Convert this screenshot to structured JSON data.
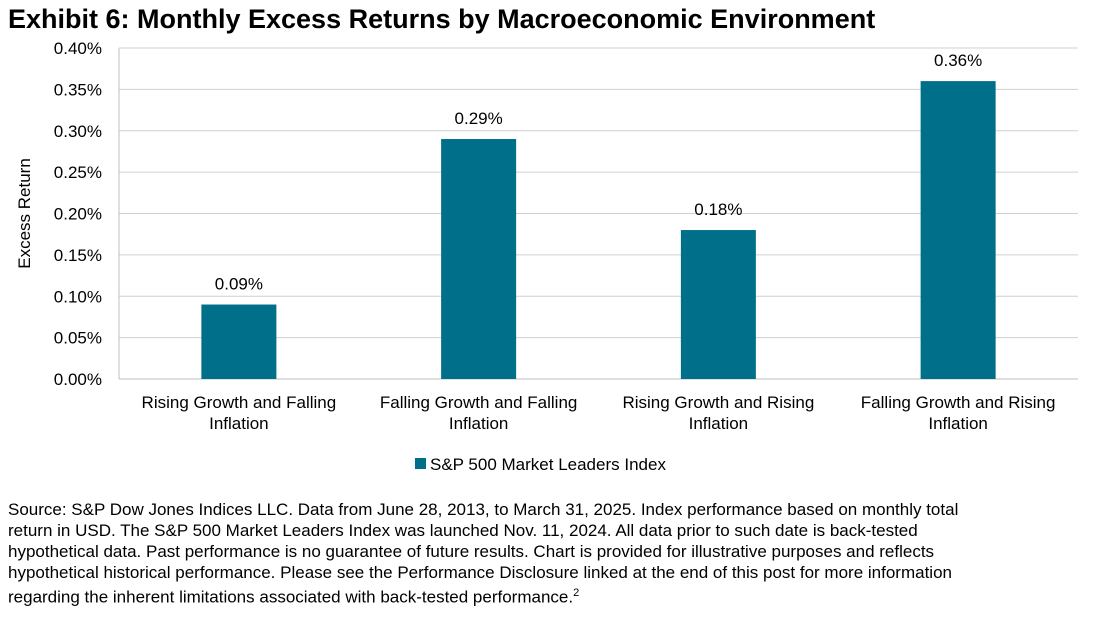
{
  "title": "Exhibit 6: Monthly Excess Returns by Macroeconomic Environment",
  "colors": {
    "bar": "#006f89",
    "grid": "#d0d0d0",
    "axis": "#bfbfbf"
  },
  "chart_data": {
    "type": "bar",
    "title": "Exhibit 6: Monthly Excess Returns by Macroeconomic Environment",
    "xlabel": "",
    "ylabel": "Excess Return",
    "ylim": [
      0,
      0.4
    ],
    "yticks": [
      "0.00%",
      "0.05%",
      "0.10%",
      "0.15%",
      "0.20%",
      "0.25%",
      "0.30%",
      "0.35%",
      "0.40%"
    ],
    "grid": true,
    "legend_position": "bottom",
    "categories": [
      [
        "Rising Growth and Falling",
        "Inflation"
      ],
      [
        "Falling Growth and Falling",
        "Inflation"
      ],
      [
        "Rising Growth and Rising",
        "Inflation"
      ],
      [
        "Falling Growth and Rising",
        "Inflation"
      ]
    ],
    "series": [
      {
        "name": "S&P 500 Market Leaders Index",
        "values": [
          0.09,
          0.29,
          0.18,
          0.36
        ],
        "labels": [
          "0.09%",
          "0.29%",
          "0.18%",
          "0.36%"
        ]
      }
    ]
  },
  "source": {
    "lines": [
      "Source: S&P Dow Jones Indices LLC. Data from June 28, 2013, to March 31, 2025. Index performance based on monthly total",
      "return in USD.  The S&P 500 Market Leaders Index was launched Nov. 11, 2024. All data prior to such date is back-tested",
      "hypothetical data. Past performance is no guarantee of future results. Chart is provided for illustrative purposes and reflects",
      "hypothetical historical performance. Please see the Performance Disclosure linked at the end of this post for more information",
      "regarding the inherent limitations associated with back-tested performance."
    ],
    "footnote": "2"
  }
}
